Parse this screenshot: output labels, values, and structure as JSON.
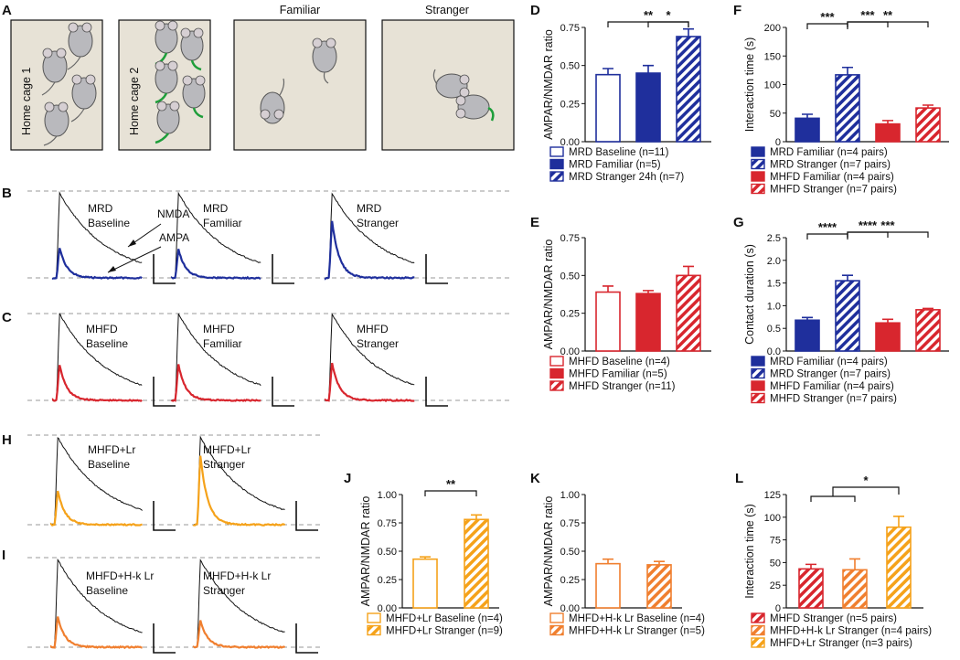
{
  "colors": {
    "mrd": "#1f2f9c",
    "mhfd": "#d8262e",
    "lr": "#f5a21a",
    "hk": "#f07f2f",
    "black": "#111111",
    "grey": "#9a9a9a",
    "cage": "#e7e2d6"
  },
  "panelA": {
    "letter": "A",
    "cages": [
      {
        "label": "Home cage 1",
        "title": ""
      },
      {
        "label": "Home cage 2",
        "title": ""
      },
      {
        "label": "",
        "title": "Familiar"
      },
      {
        "label": "",
        "title": "Stranger"
      }
    ]
  },
  "panelB": {
    "letter": "B",
    "traces": [
      "MRD\nBaseline",
      "MRD\nFamiliar",
      "MRD\nStranger"
    ],
    "annotations": [
      "NMDA",
      "AMPA"
    ]
  },
  "panelC": {
    "letter": "C",
    "traces": [
      "MHFD\nBaseline",
      "MHFD\nFamiliar",
      "MHFD\nStranger"
    ]
  },
  "panelH": {
    "letter": "H",
    "traces": [
      "MHFD+Lr\nBaseline",
      "MHFD+Lr\nStranger"
    ]
  },
  "panelI": {
    "letter": "I",
    "traces": [
      "MHFD+H-k Lr\nBaseline",
      "MHFD+H-k Lr\nStranger"
    ]
  },
  "chart_data": [
    {
      "id": "D",
      "type": "bar",
      "letter": "D",
      "ylabel": "AMPAR/NMDAR ratio",
      "ylim": [
        0,
        0.75
      ],
      "yticks": [
        "0.00",
        "0.25",
        "0.50",
        "0.75"
      ],
      "categories": [
        "MRD Baseline (n=11)",
        "MRD Familiar (n=5)",
        "MRD Stranger 24h (n=7)"
      ],
      "values": [
        0.44,
        0.45,
        0.69
      ],
      "errors": [
        0.04,
        0.05,
        0.05
      ],
      "styles": [
        "open-mrd",
        "solid-mrd",
        "hatch-mrd"
      ],
      "significance": [
        {
          "from": 1,
          "to": 2,
          "label": "*"
        },
        {
          "from": 0,
          "to": 2,
          "label": "**"
        }
      ]
    },
    {
      "id": "E",
      "type": "bar",
      "letter": "E",
      "ylabel": "AMPAR/NMDAR ratio",
      "ylim": [
        0,
        0.75
      ],
      "yticks": [
        "0.00",
        "0.25",
        "0.50",
        "0.75"
      ],
      "categories": [
        "MHFD Baseline (n=4)",
        "MHFD Familiar (n=5)",
        "MHFD Stranger (n=11)"
      ],
      "values": [
        0.39,
        0.38,
        0.5
      ],
      "errors": [
        0.04,
        0.02,
        0.06
      ],
      "styles": [
        "open-mhfd",
        "solid-mhfd",
        "hatch-mhfd"
      ],
      "significance": []
    },
    {
      "id": "F",
      "type": "bar",
      "letter": "F",
      "ylabel": "Interaction time (s)",
      "ylim": [
        0,
        200
      ],
      "yticks": [
        "0",
        "50",
        "100",
        "150",
        "200"
      ],
      "categories": [
        "MRD Familiar (n=4 pairs)",
        "MRD Stranger (n=7 pairs)",
        "MHFD Familiar (n=4 pairs)",
        "MHFD Stranger (n=7 pairs)"
      ],
      "values": [
        41,
        117,
        31,
        59
      ],
      "errors": [
        7,
        13,
        6,
        5
      ],
      "styles": [
        "solid-mrd",
        "hatch-mrd",
        "solid-mhfd",
        "hatch-mhfd"
      ],
      "significance": [
        {
          "from": 0,
          "to": 1,
          "label": "***"
        },
        {
          "from": 1,
          "to": 2,
          "label": "***"
        },
        {
          "from": 1,
          "to": 3,
          "label": "**"
        }
      ]
    },
    {
      "id": "G",
      "type": "bar",
      "letter": "G",
      "ylabel": "Contact duration (s)",
      "ylim": [
        0,
        2.5
      ],
      "yticks": [
        "0.0",
        "0.5",
        "1.0",
        "1.5",
        "2.0",
        "2.5"
      ],
      "categories": [
        "MRD Familiar (n=4 pairs)",
        "MRD Stranger (n=7 pairs)",
        "MHFD Familiar (n=4 pairs)",
        "MHFD Stranger (n=7 pairs)"
      ],
      "values": [
        0.68,
        1.55,
        0.62,
        0.91
      ],
      "errors": [
        0.06,
        0.12,
        0.08,
        0.03
      ],
      "styles": [
        "solid-mrd",
        "hatch-mrd",
        "solid-mhfd",
        "hatch-mhfd"
      ],
      "significance": [
        {
          "from": 0,
          "to": 1,
          "label": "****"
        },
        {
          "from": 1,
          "to": 2,
          "label": "****"
        },
        {
          "from": 1,
          "to": 3,
          "label": "***"
        }
      ]
    },
    {
      "id": "J",
      "type": "bar",
      "letter": "J",
      "ylabel": "AMPAR/NMDAR ratio",
      "ylim": [
        0,
        1.0
      ],
      "yticks": [
        "0.00",
        "0.25",
        "0.50",
        "0.75",
        "1.00"
      ],
      "categories": [
        "MHFD+Lr Baseline (n=4)",
        "MHFD+Lr Stranger (n=9)"
      ],
      "values": [
        0.43,
        0.78
      ],
      "errors": [
        0.02,
        0.04
      ],
      "styles": [
        "open-lr",
        "hatch-lr"
      ],
      "significance": [
        {
          "from": 0,
          "to": 1,
          "label": "**"
        }
      ]
    },
    {
      "id": "K",
      "type": "bar",
      "letter": "K",
      "ylabel": "AMPAR/NMDAR ratio",
      "ylim": [
        0,
        1.0
      ],
      "yticks": [
        "0.00",
        "0.25",
        "0.50",
        "0.75",
        "1.00"
      ],
      "categories": [
        "MHFD+H-k Lr Baseline (n=4)",
        "MHFD+H-k Lr Stranger (n=5)"
      ],
      "values": [
        0.39,
        0.38
      ],
      "errors": [
        0.04,
        0.03
      ],
      "styles": [
        "open-hk",
        "hatch-hk"
      ],
      "significance": []
    },
    {
      "id": "L",
      "type": "bar",
      "letter": "L",
      "ylabel": "Interaction time (s)",
      "ylim": [
        0,
        125
      ],
      "yticks": [
        "0",
        "25",
        "50",
        "75",
        "100",
        "125"
      ],
      "categories": [
        "MHFD Stranger (n=5 pairs)",
        "MHFD+H-k Lr Stranger (n=4 pairs)",
        "MHFD+Lr Stranger (n=3 pairs)"
      ],
      "values": [
        43,
        42,
        89
      ],
      "errors": [
        5,
        12,
        12
      ],
      "styles": [
        "hatch-mhfd",
        "hatch-hk",
        "hatch-lr"
      ],
      "significance": [
        {
          "from": 0,
          "to": 2,
          "label": "*",
          "group": [
            0,
            1
          ]
        }
      ]
    }
  ]
}
